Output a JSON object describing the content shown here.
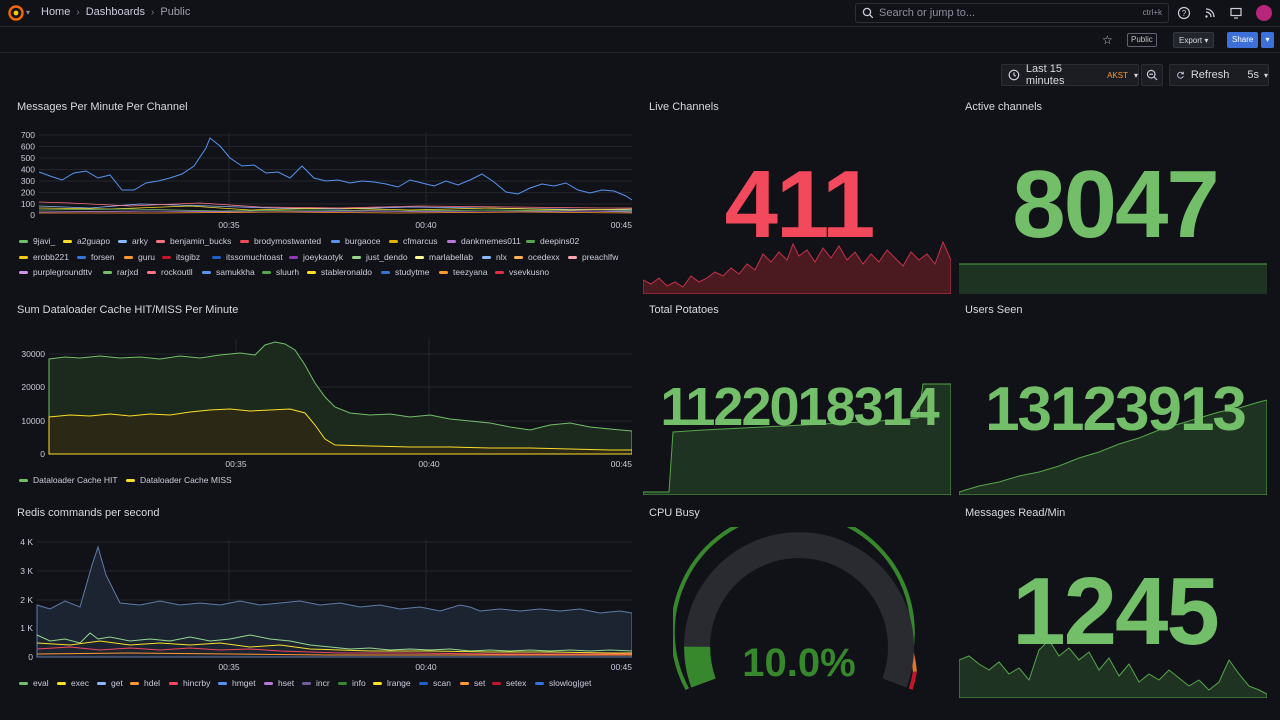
{
  "header": {
    "breadcrumb": [
      "Home",
      "Dashboards",
      "Public"
    ],
    "search_placeholder": "Search or jump to...",
    "search_shortcut": "ctrl+k"
  },
  "toolbar": {
    "public_tag": "Public",
    "export_label": "Export",
    "share_label": "Share",
    "time_range": "Last 15 minutes",
    "timezone": "AKST",
    "refresh_label": "Refresh",
    "refresh_interval": "5s"
  },
  "colors": {
    "red": "#f2495c",
    "green": "#73bf69",
    "yellow": "#fade2a",
    "blue": "#5794f2",
    "orange": "#ff9830",
    "bg": "#111217"
  },
  "panels": {
    "messages_per_minute": {
      "title": "Messages Per Minute Per Channel",
      "y_ticks": [
        "700",
        "600",
        "500",
        "400",
        "300",
        "200",
        "100",
        "0"
      ],
      "x_ticks": [
        "00:35",
        "00:40",
        "00:45"
      ],
      "legend": [
        {
          "name": "9javi_",
          "color": "#73bf69"
        },
        {
          "name": "a2guapo",
          "color": "#fade2a"
        },
        {
          "name": "arky",
          "color": "#8ab8ff"
        },
        {
          "name": "benjamin_bucks",
          "color": "#ff7383"
        },
        {
          "name": "brodymostwanted",
          "color": "#f2495c"
        },
        {
          "name": "burgaoce",
          "color": "#5794f2"
        },
        {
          "name": "cfmarcus",
          "color": "#e0b400"
        },
        {
          "name": "dankmemes011",
          "color": "#b877d9"
        },
        {
          "name": "deepins02",
          "color": "#56a64b"
        },
        {
          "name": "erobb221",
          "color": "#f2cc0c"
        },
        {
          "name": "forsen",
          "color": "#3274d9"
        },
        {
          "name": "guru",
          "color": "#ff9830"
        },
        {
          "name": "itsgibz",
          "color": "#c4162a"
        },
        {
          "name": "itssomuchtoast",
          "color": "#1f60c4"
        },
        {
          "name": "joeykaotyk",
          "color": "#8f3bb8"
        },
        {
          "name": "just_dendo",
          "color": "#96d98d"
        },
        {
          "name": "marlabellab",
          "color": "#fff899"
        },
        {
          "name": "nlx",
          "color": "#8ab8ff"
        },
        {
          "name": "ocedexx",
          "color": "#ffb357"
        },
        {
          "name": "preachlfw",
          "color": "#ffa6b0"
        },
        {
          "name": "purplegroundttv",
          "color": "#ca95e5"
        },
        {
          "name": "rarjxd",
          "color": "#73bf69"
        },
        {
          "name": "rockoutll",
          "color": "#ff7383"
        },
        {
          "name": "samukkha",
          "color": "#5794f2"
        },
        {
          "name": "sluurh",
          "color": "#56a64b"
        },
        {
          "name": "stableronaldo",
          "color": "#fade2a"
        },
        {
          "name": "studytme",
          "color": "#3274d9"
        },
        {
          "name": "teezyana",
          "color": "#ff9830"
        },
        {
          "name": "vsevkusno",
          "color": "#e02f44"
        }
      ]
    },
    "live_channels": {
      "title": "Live Channels",
      "value": "411"
    },
    "active_channels": {
      "title": "Active channels",
      "value": "8047"
    },
    "dataloader": {
      "title": "Sum Dataloader Cache HIT/MISS Per Minute",
      "y_ticks": [
        "30000",
        "20000",
        "10000",
        "0"
      ],
      "x_ticks": [
        "00:35",
        "00:40",
        "00:45"
      ],
      "legend": [
        {
          "name": "Dataloader Cache HIT",
          "color": "#73bf69"
        },
        {
          "name": "Dataloader Cache MISS",
          "color": "#fade2a"
        }
      ]
    },
    "total_potatoes": {
      "title": "Total Potatoes",
      "value": "1122018314"
    },
    "users_seen": {
      "title": "Users Seen",
      "value": "13123913"
    },
    "redis": {
      "title": "Redis commands per second",
      "y_ticks": [
        "4 K",
        "3 K",
        "2 K",
        "1 K",
        "0"
      ],
      "x_ticks": [
        "00:35",
        "00:40",
        "00:45"
      ],
      "legend": [
        {
          "name": "eval",
          "color": "#73bf69"
        },
        {
          "name": "exec",
          "color": "#fade2a"
        },
        {
          "name": "get",
          "color": "#8ab8ff"
        },
        {
          "name": "hdel",
          "color": "#ff9830"
        },
        {
          "name": "hincrby",
          "color": "#f2495c"
        },
        {
          "name": "hmget",
          "color": "#5794f2"
        },
        {
          "name": "hset",
          "color": "#b877d9"
        },
        {
          "name": "incr",
          "color": "#705da0"
        },
        {
          "name": "info",
          "color": "#37872d"
        },
        {
          "name": "lrange",
          "color": "#fade2a"
        },
        {
          "name": "scan",
          "color": "#1f60c4"
        },
        {
          "name": "set",
          "color": "#ff9830"
        },
        {
          "name": "setex",
          "color": "#c4162a"
        },
        {
          "name": "slowlog|get",
          "color": "#3274d9"
        }
      ]
    },
    "cpu_busy": {
      "title": "CPU Busy",
      "value": "10.0%",
      "percent": 10
    },
    "messages_read": {
      "title": "Messages Read/Min",
      "value": "1245"
    }
  }
}
